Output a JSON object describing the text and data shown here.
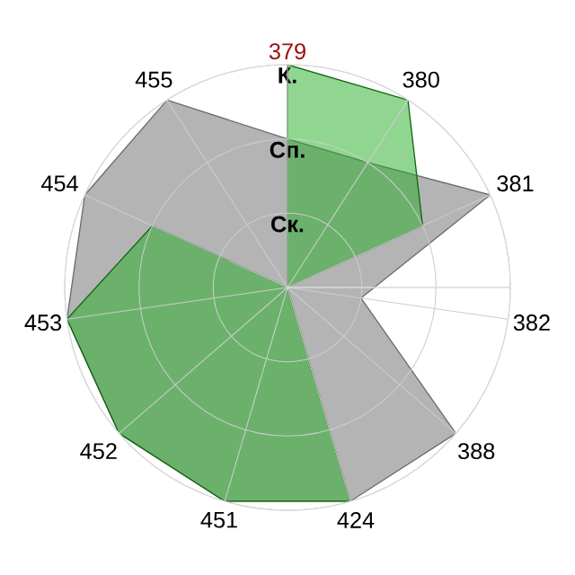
{
  "chart_data": {
    "type": "radar",
    "categories": [
      "379",
      "380",
      "381",
      "382",
      "388",
      "424",
      "451",
      "452",
      "453",
      "454",
      "455"
    ],
    "ylim": [
      0,
      3
    ],
    "yticks": [
      {
        "value": 1,
        "label": "Ск."
      },
      {
        "value": 2,
        "label": "Сп."
      },
      {
        "value": 3,
        "label": "К."
      }
    ],
    "grid": true,
    "series": [
      {
        "color": "#b4b4b4",
        "values": [
          2,
          2,
          3,
          1,
          3,
          3,
          3,
          3,
          3,
          3,
          3
        ]
      },
      {
        "color": "#21ad21",
        "values": [
          3,
          3,
          2,
          0,
          0,
          3,
          3,
          3,
          3,
          2,
          0
        ]
      }
    ]
  }
}
